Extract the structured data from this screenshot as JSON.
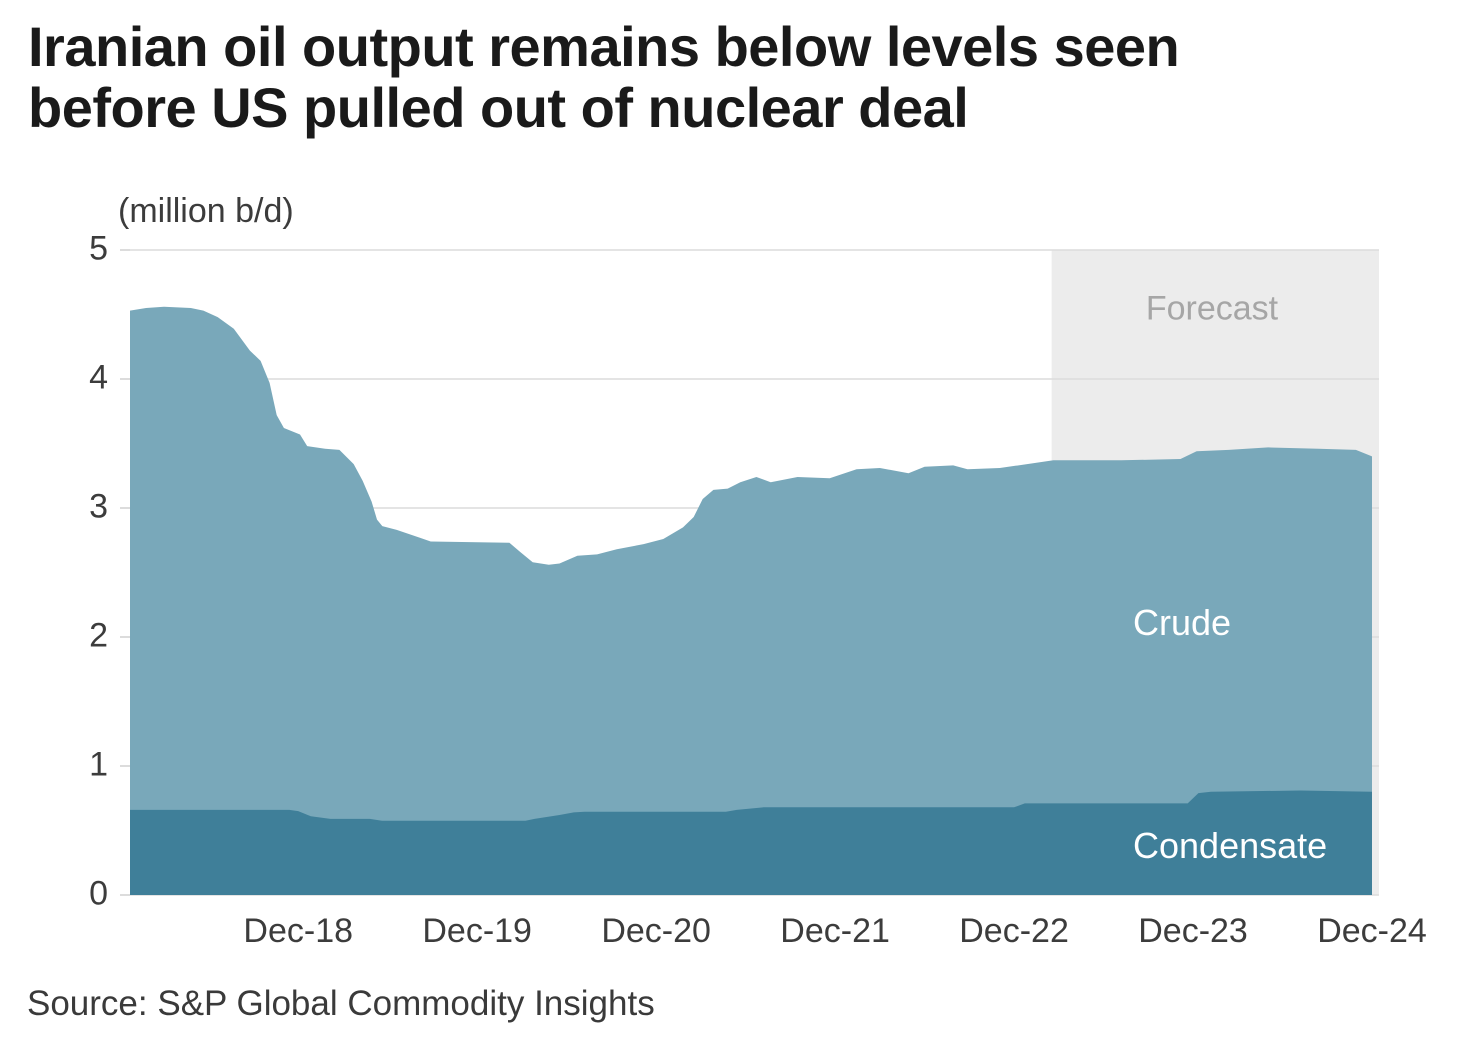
{
  "title": {
    "line1": "Iranian oil output remains below levels seen",
    "line2": "before US pulled out of nuclear deal"
  },
  "unit_label": "(million b/d)",
  "source": "Source: S&P Global Commodity Insights",
  "labels": {
    "forecast": "Forecast",
    "crude": "Crude",
    "condensate": "Condensate"
  },
  "colors": {
    "crude_area": "#79A8BA",
    "condensate_area": "#3F7F99",
    "forecast_bg": "#ECECEC",
    "gridline": "#DCDCDC",
    "axis_text": "#3C3C3C",
    "title_text": "#1A1A1A",
    "forecast_text": "#A6A6A6",
    "area_label_text": "#FFFFFF"
  },
  "chart_data": {
    "type": "area",
    "stacked": true,
    "title": "Iranian oil output remains below levels seen before US pulled out of nuclear deal",
    "ylabel": "(million b/d)",
    "xlabel": "",
    "ylim": [
      0,
      5
    ],
    "xlim": [
      0.06,
      7.0
    ],
    "x_unit": "years after Dec-2017 (monthly data, Jan-2018 to Dec-2024)",
    "grid": "horizontal",
    "forecast_start_t": 5.21,
    "forecast_label": "Forecast",
    "y_ticks": [
      {
        "label": "5",
        "v": 5
      },
      {
        "label": "4",
        "v": 4
      },
      {
        "label": "3",
        "v": 3
      },
      {
        "label": "2",
        "v": 2
      },
      {
        "label": "1",
        "v": 1
      },
      {
        "label": "0",
        "v": 0
      }
    ],
    "x_ticks": [
      {
        "label": "Dec-18",
        "t": 1
      },
      {
        "label": "Dec-19",
        "t": 2
      },
      {
        "label": "Dec-20",
        "t": 3
      },
      {
        "label": "Dec-21",
        "t": 4
      },
      {
        "label": "Dec-22",
        "t": 5
      },
      {
        "label": "Dec-23",
        "t": 6
      },
      {
        "label": "Dec-24",
        "t": 7
      }
    ],
    "series": [
      {
        "name": "Total output (Crude + Condensate, million b/d)",
        "role": "total_top_boundary",
        "points": [
          [
            0.06,
            4.53
          ],
          [
            0.15,
            4.55
          ],
          [
            0.25,
            4.56
          ],
          [
            0.4,
            4.55
          ],
          [
            0.47,
            4.53
          ],
          [
            0.55,
            4.48
          ],
          [
            0.64,
            4.39
          ],
          [
            0.73,
            4.22
          ],
          [
            0.79,
            4.14
          ],
          [
            0.84,
            3.97
          ],
          [
            0.88,
            3.72
          ],
          [
            0.92,
            3.62
          ],
          [
            1.01,
            3.57
          ],
          [
            1.05,
            3.48
          ],
          [
            1.15,
            3.46
          ],
          [
            1.23,
            3.45
          ],
          [
            1.31,
            3.34
          ],
          [
            1.36,
            3.21
          ],
          [
            1.41,
            3.05
          ],
          [
            1.44,
            2.91
          ],
          [
            1.47,
            2.86
          ],
          [
            1.55,
            2.83
          ],
          [
            1.68,
            2.77
          ],
          [
            1.74,
            2.74
          ],
          [
            2.18,
            2.73
          ],
          [
            2.24,
            2.66
          ],
          [
            2.31,
            2.58
          ],
          [
            2.4,
            2.56
          ],
          [
            2.46,
            2.57
          ],
          [
            2.56,
            2.63
          ],
          [
            2.67,
            2.64
          ],
          [
            2.78,
            2.68
          ],
          [
            2.93,
            2.72
          ],
          [
            3.04,
            2.76
          ],
          [
            3.15,
            2.85
          ],
          [
            3.21,
            2.93
          ],
          [
            3.26,
            3.07
          ],
          [
            3.32,
            3.14
          ],
          [
            3.4,
            3.15
          ],
          [
            3.47,
            3.2
          ],
          [
            3.56,
            3.24
          ],
          [
            3.64,
            3.2
          ],
          [
            3.79,
            3.24
          ],
          [
            3.97,
            3.23
          ],
          [
            4.12,
            3.3
          ],
          [
            4.25,
            3.31
          ],
          [
            4.41,
            3.27
          ],
          [
            4.5,
            3.32
          ],
          [
            4.66,
            3.33
          ],
          [
            4.74,
            3.3
          ],
          [
            4.92,
            3.31
          ],
          [
            5.12,
            3.35
          ],
          [
            5.22,
            3.37
          ],
          [
            5.6,
            3.37
          ],
          [
            5.93,
            3.38
          ],
          [
            6.02,
            3.44
          ],
          [
            6.2,
            3.45
          ],
          [
            6.42,
            3.47
          ],
          [
            6.7,
            3.46
          ],
          [
            6.91,
            3.45
          ],
          [
            7.0,
            3.4
          ]
        ]
      },
      {
        "name": "Condensate (million b/d)",
        "role": "condensate_boundary",
        "points": [
          [
            0.06,
            0.66
          ],
          [
            0.95,
            0.66
          ],
          [
            1.0,
            0.65
          ],
          [
            1.07,
            0.61
          ],
          [
            1.18,
            0.59
          ],
          [
            1.4,
            0.59
          ],
          [
            1.47,
            0.575
          ],
          [
            2.27,
            0.575
          ],
          [
            2.32,
            0.59
          ],
          [
            2.46,
            0.62
          ],
          [
            2.54,
            0.64
          ],
          [
            2.6,
            0.645
          ],
          [
            3.39,
            0.645
          ],
          [
            3.45,
            0.66
          ],
          [
            3.6,
            0.68
          ],
          [
            5.0,
            0.68
          ],
          [
            5.06,
            0.71
          ],
          [
            5.97,
            0.71
          ],
          [
            6.03,
            0.79
          ],
          [
            6.1,
            0.8
          ],
          [
            6.6,
            0.81
          ],
          [
            7.0,
            0.8
          ]
        ]
      }
    ],
    "note_series_relation": "Crude band = total_top_boundary minus condensate_boundary"
  }
}
